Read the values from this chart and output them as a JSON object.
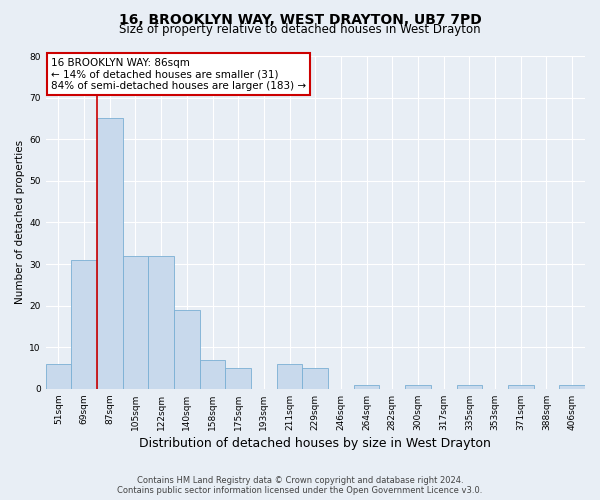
{
  "title": "16, BROOKLYN WAY, WEST DRAYTON, UB7 7PD",
  "subtitle": "Size of property relative to detached houses in West Drayton",
  "xlabel": "Distribution of detached houses by size in West Drayton",
  "ylabel": "Number of detached properties",
  "bar_labels": [
    "51sqm",
    "69sqm",
    "87sqm",
    "105sqm",
    "122sqm",
    "140sqm",
    "158sqm",
    "175sqm",
    "193sqm",
    "211sqm",
    "229sqm",
    "246sqm",
    "264sqm",
    "282sqm",
    "300sqm",
    "317sqm",
    "335sqm",
    "353sqm",
    "371sqm",
    "388sqm",
    "406sqm"
  ],
  "bar_values": [
    6,
    31,
    65,
    32,
    32,
    19,
    7,
    5,
    0,
    6,
    5,
    0,
    1,
    0,
    1,
    0,
    1,
    0,
    1,
    0,
    1
  ],
  "bar_color": "#c8d9ec",
  "bar_edge_color": "#7aafd4",
  "property_line_label": "16 BROOKLYN WAY: 86sqm",
  "annotation_line1": "← 14% of detached houses are smaller (31)",
  "annotation_line2": "84% of semi-detached houses are larger (183) →",
  "box_facecolor": "#ffffff",
  "box_edgecolor": "#cc0000",
  "vline_color": "#cc0000",
  "ylim": [
    0,
    80
  ],
  "yticks": [
    0,
    10,
    20,
    30,
    40,
    50,
    60,
    70,
    80
  ],
  "footer_line1": "Contains HM Land Registry data © Crown copyright and database right 2024.",
  "footer_line2": "Contains public sector information licensed under the Open Government Licence v3.0.",
  "bg_color": "#e8eef5",
  "plot_bg_color": "#e8eef5",
  "grid_color": "#ffffff",
  "title_fontsize": 10,
  "subtitle_fontsize": 8.5,
  "xlabel_fontsize": 9,
  "ylabel_fontsize": 7.5,
  "tick_fontsize": 6.5,
  "footer_fontsize": 6,
  "annotation_fontsize": 7.5
}
